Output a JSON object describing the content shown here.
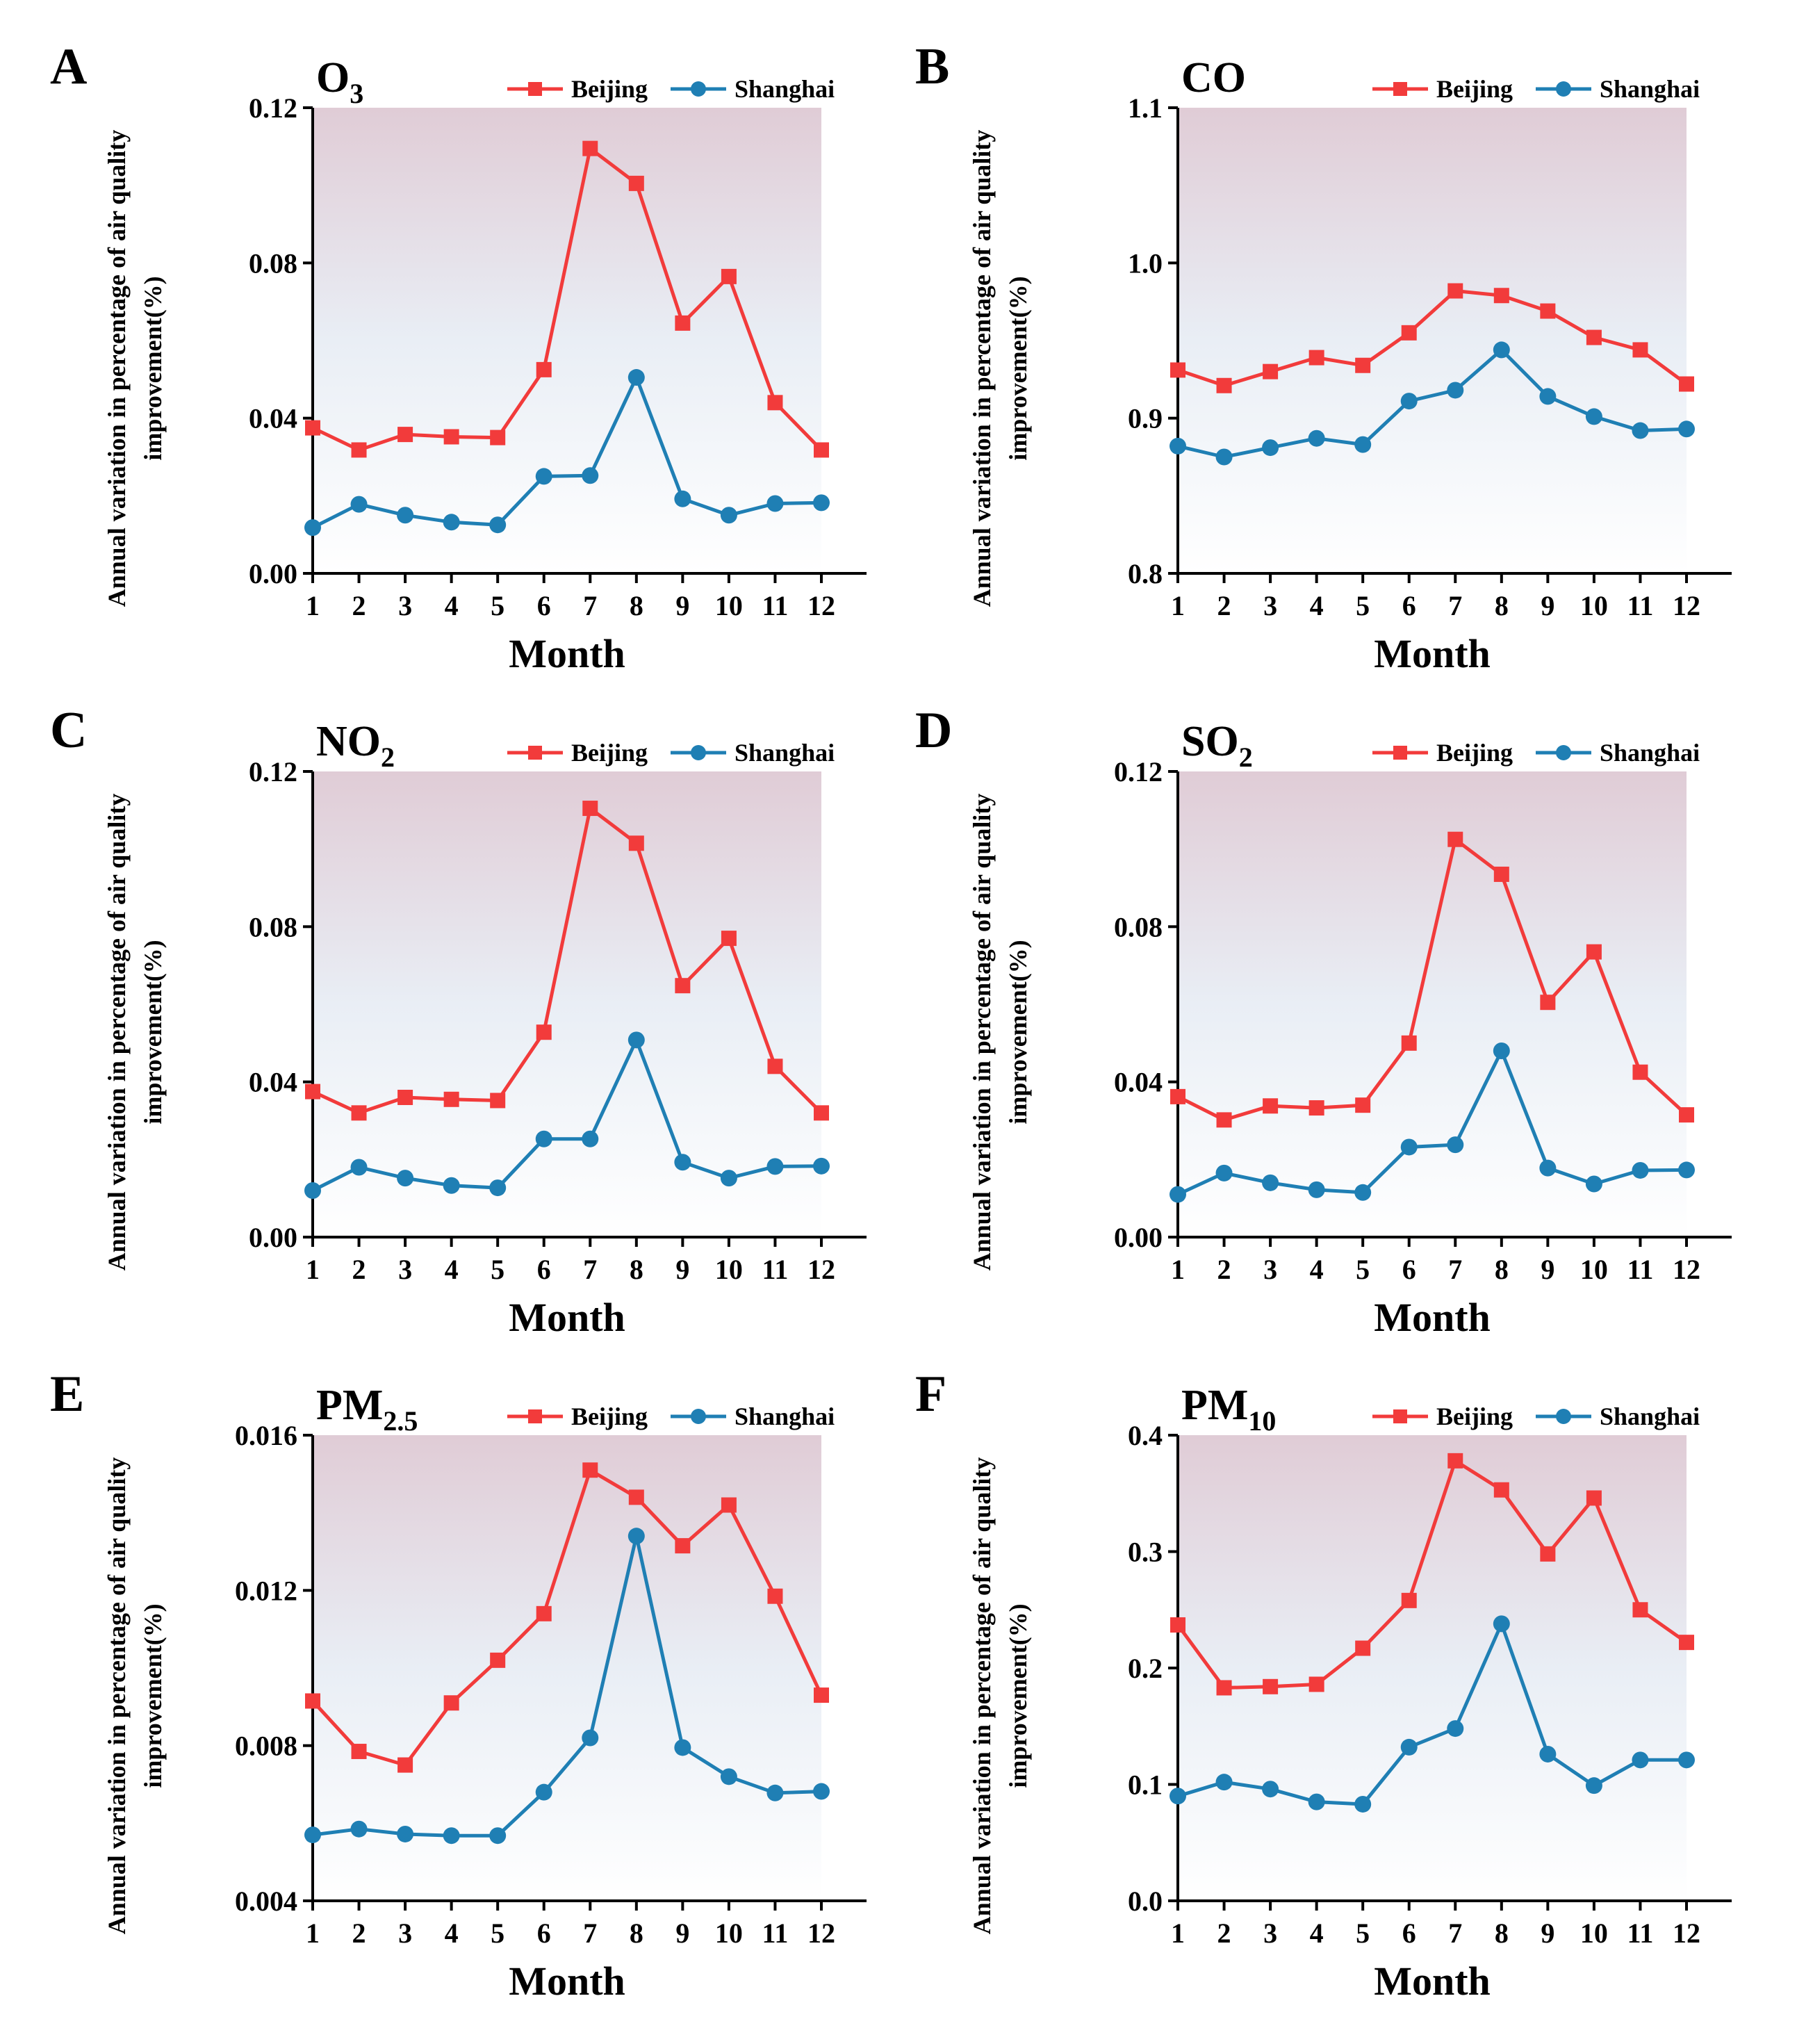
{
  "figure": {
    "x_title": "Month",
    "y_title_line1": "Annual variation in percentage of air quality",
    "y_title_line2": "improvement(%)"
  },
  "colors": {
    "beijing": "#F23B3B",
    "shanghai": "#1F7FB4",
    "bg_top": "#E0CCD6",
    "bg_mid": "#E9EEF5",
    "bg_bottom": "#FFFFFF",
    "axis": "#000000"
  },
  "legend": {
    "series1": "Beijing",
    "series2": "Shanghai"
  },
  "chart_data": [
    {
      "panel": "A",
      "title_main": "O",
      "title_sub": "3",
      "type": "line",
      "categories": [
        "1",
        "2",
        "3",
        "4",
        "5",
        "6",
        "7",
        "8",
        "9",
        "10",
        "11",
        "12"
      ],
      "ylim": [
        0,
        0.12
      ],
      "yticks": [
        "0.00",
        "0.04",
        "0.08",
        "0.12"
      ],
      "ytick_values": [
        0,
        0.04,
        0.08,
        0.12
      ],
      "series": [
        {
          "name": "Beijing",
          "values": [
            0.0375,
            0.0318,
            0.0358,
            0.0352,
            0.035,
            0.0525,
            0.1095,
            0.1005,
            0.0645,
            0.0765,
            0.044,
            0.0318
          ]
        },
        {
          "name": "Shanghai",
          "values": [
            0.0118,
            0.0178,
            0.015,
            0.0132,
            0.0125,
            0.025,
            0.0252,
            0.0505,
            0.0192,
            0.015,
            0.018,
            0.0182
          ]
        }
      ]
    },
    {
      "panel": "B",
      "title_main": "CO",
      "title_sub": "",
      "type": "line",
      "categories": [
        "1",
        "2",
        "3",
        "4",
        "5",
        "6",
        "7",
        "8",
        "9",
        "10",
        "11",
        "12"
      ],
      "ylim": [
        0.8,
        1.1
      ],
      "yticks": [
        "0.8",
        "0.9",
        "1.0",
        "1.1"
      ],
      "ytick_values": [
        0.8,
        0.9,
        1.0,
        1.1
      ],
      "series": [
        {
          "name": "Beijing",
          "values": [
            0.931,
            0.921,
            0.93,
            0.939,
            0.934,
            0.955,
            0.982,
            0.979,
            0.969,
            0.952,
            0.944,
            0.922
          ]
        },
        {
          "name": "Shanghai",
          "values": [
            0.882,
            0.875,
            0.881,
            0.887,
            0.883,
            0.911,
            0.918,
            0.944,
            0.914,
            0.901,
            0.892,
            0.893
          ]
        }
      ]
    },
    {
      "panel": "C",
      "title_main": "NO",
      "title_sub": "2",
      "type": "line",
      "categories": [
        "1",
        "2",
        "3",
        "4",
        "5",
        "6",
        "7",
        "8",
        "9",
        "10",
        "11",
        "12"
      ],
      "ylim": [
        0,
        0.12
      ],
      "yticks": [
        "0.00",
        "0.04",
        "0.08",
        "0.12"
      ],
      "ytick_values": [
        0,
        0.04,
        0.08,
        0.12
      ],
      "series": [
        {
          "name": "Beijing",
          "values": [
            0.0375,
            0.032,
            0.036,
            0.0355,
            0.0352,
            0.0528,
            0.1105,
            0.1015,
            0.0648,
            0.077,
            0.044,
            0.032
          ]
        },
        {
          "name": "Shanghai",
          "values": [
            0.012,
            0.018,
            0.0152,
            0.0133,
            0.0127,
            0.0253,
            0.0253,
            0.0508,
            0.0193,
            0.0152,
            0.0182,
            0.0183
          ]
        }
      ]
    },
    {
      "panel": "D",
      "title_main": "SO",
      "title_sub": "2",
      "type": "line",
      "categories": [
        "1",
        "2",
        "3",
        "4",
        "5",
        "6",
        "7",
        "8",
        "9",
        "10",
        "11",
        "12"
      ],
      "ylim": [
        0,
        0.12
      ],
      "yticks": [
        "0.00",
        "0.04",
        "0.08",
        "0.12"
      ],
      "ytick_values": [
        0,
        0.04,
        0.08,
        0.12
      ],
      "series": [
        {
          "name": "Beijing",
          "values": [
            0.0362,
            0.0302,
            0.0338,
            0.0333,
            0.034,
            0.05,
            0.1025,
            0.0935,
            0.0605,
            0.0735,
            0.0425,
            0.0315
          ]
        },
        {
          "name": "Shanghai",
          "values": [
            0.011,
            0.0165,
            0.014,
            0.0122,
            0.0115,
            0.0232,
            0.0238,
            0.048,
            0.0178,
            0.0137,
            0.0172,
            0.0173
          ]
        }
      ]
    },
    {
      "panel": "E",
      "title_main": "PM",
      "title_sub": "2.5",
      "type": "line",
      "categories": [
        "1",
        "2",
        "3",
        "4",
        "5",
        "6",
        "7",
        "8",
        "9",
        "10",
        "11",
        "12"
      ],
      "ylim": [
        0.004,
        0.016
      ],
      "yticks": [
        "0.004",
        "0.008",
        "0.012",
        "0.016"
      ],
      "ytick_values": [
        0.004,
        0.008,
        0.012,
        0.016
      ],
      "series": [
        {
          "name": "Beijing",
          "values": [
            0.00915,
            0.00785,
            0.0075,
            0.0091,
            0.0102,
            0.0114,
            0.0151,
            0.0144,
            0.01315,
            0.0142,
            0.01185,
            0.0093
          ]
        },
        {
          "name": "Shanghai",
          "values": [
            0.0057,
            0.00585,
            0.00572,
            0.00568,
            0.00568,
            0.0068,
            0.0082,
            0.0134,
            0.00795,
            0.0072,
            0.00678,
            0.00682
          ]
        }
      ]
    },
    {
      "panel": "F",
      "title_main": "PM",
      "title_sub": "10",
      "type": "line",
      "categories": [
        "1",
        "2",
        "3",
        "4",
        "5",
        "6",
        "7",
        "8",
        "9",
        "10",
        "11",
        "12"
      ],
      "ylim": [
        0,
        0.4
      ],
      "yticks": [
        "0.0",
        "0.1",
        "0.2",
        "0.3",
        "0.4"
      ],
      "ytick_values": [
        0,
        0.1,
        0.2,
        0.3,
        0.4
      ],
      "series": [
        {
          "name": "Beijing",
          "values": [
            0.237,
            0.183,
            0.184,
            0.186,
            0.217,
            0.258,
            0.378,
            0.353,
            0.298,
            0.346,
            0.25,
            0.222
          ]
        },
        {
          "name": "Shanghai",
          "values": [
            0.09,
            0.102,
            0.096,
            0.085,
            0.083,
            0.132,
            0.148,
            0.238,
            0.126,
            0.099,
            0.121,
            0.121
          ]
        }
      ]
    }
  ]
}
